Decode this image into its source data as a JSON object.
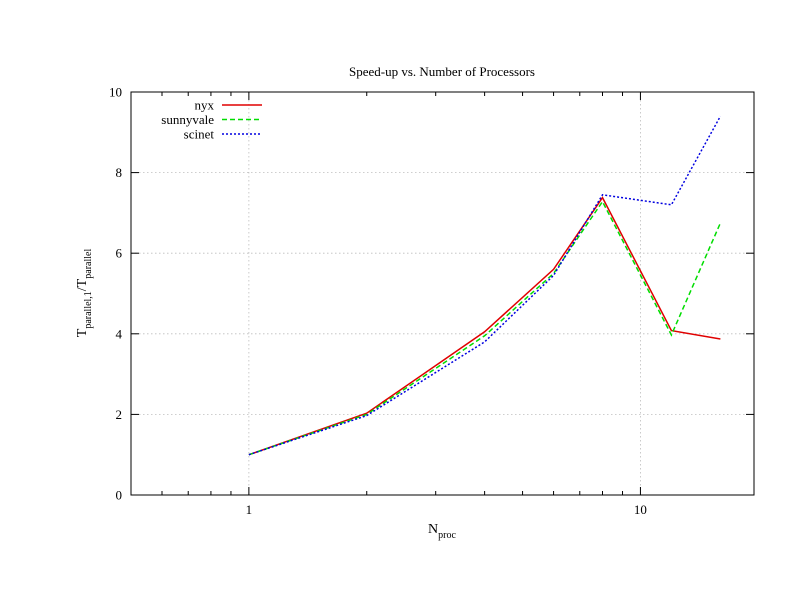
{
  "chart_data": {
    "type": "line",
    "title": "Speed-up vs. Number of Processors",
    "xlabel": {
      "main": "N",
      "sub": "proc"
    },
    "ylabel": {
      "main1": "T",
      "sub1": "parallel,1",
      "sep": "/T",
      "sub2": "parallel"
    },
    "x_scale": "log",
    "xlim": [
      0.5,
      19.5
    ],
    "ylim": [
      0,
      10
    ],
    "x_ticks": [
      1,
      10
    ],
    "x_tick_labels": [
      "1",
      "10"
    ],
    "x_minor_ticks": [
      0.5,
      0.6,
      0.7,
      0.8,
      0.9,
      2,
      3,
      4,
      5,
      6,
      7,
      8,
      9
    ],
    "y_ticks": [
      0,
      2,
      4,
      6,
      8,
      10
    ],
    "y_tick_labels": [
      "0",
      "2",
      "4",
      "6",
      "8",
      "10"
    ],
    "grid": true,
    "legend_position": "top-left",
    "series": [
      {
        "name": "nyx",
        "color": "#e00000",
        "dash": "solid",
        "x": [
          1,
          2,
          4,
          6,
          8,
          12,
          16
        ],
        "y": [
          1.0,
          2.03,
          4.05,
          5.6,
          7.38,
          4.08,
          3.87
        ]
      },
      {
        "name": "sunnyvale",
        "color": "#00dd00",
        "dash": "dashed",
        "x": [
          1,
          2,
          4,
          6,
          8,
          12,
          16
        ],
        "y": [
          1.0,
          2.0,
          3.95,
          5.5,
          7.28,
          3.97,
          6.75
        ]
      },
      {
        "name": "scinet",
        "color": "#0000e0",
        "dash": "dotted",
        "x": [
          1,
          2,
          4,
          6,
          8,
          12,
          16
        ],
        "y": [
          1.0,
          1.97,
          3.8,
          5.45,
          7.45,
          7.2,
          9.4
        ]
      }
    ]
  }
}
